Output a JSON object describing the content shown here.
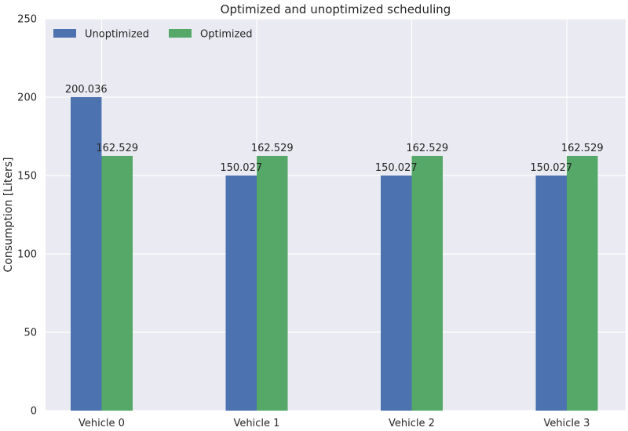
{
  "chart_data": {
    "type": "bar",
    "title": "Optimized and unoptimized scheduling",
    "xlabel": "",
    "ylabel": "Consumption [Liters]",
    "categories": [
      "Vehicle 0",
      "Vehicle 1",
      "Vehicle 2",
      "Vehicle 3"
    ],
    "series": [
      {
        "name": "Unoptimized",
        "color": "#4c72b0",
        "values": [
          200.036,
          150.027,
          150.027,
          150.027
        ],
        "labels": [
          "200.036",
          "150.027",
          "150.027",
          "150.027"
        ]
      },
      {
        "name": "Optimized",
        "color": "#55a868",
        "values": [
          162.529,
          162.529,
          162.529,
          162.529
        ],
        "labels": [
          "162.529",
          "162.529",
          "162.529",
          "162.529"
        ]
      }
    ],
    "ylim": [
      0,
      250
    ],
    "yticks": [
      0,
      50,
      100,
      150,
      200,
      250
    ],
    "grid": true,
    "background": "#eaeaf2",
    "legend_position": "top-left"
  }
}
